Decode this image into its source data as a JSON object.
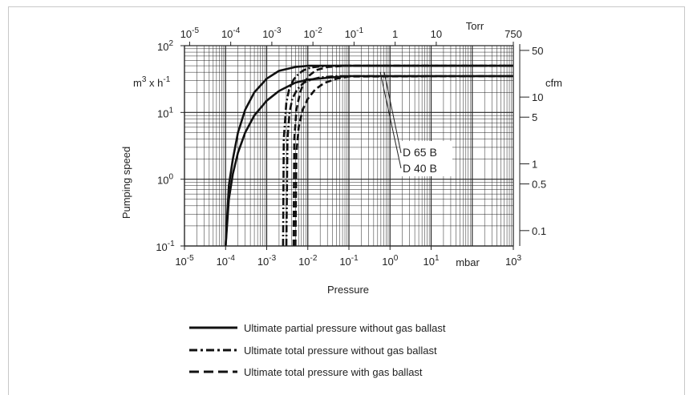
{
  "chart_data": {
    "type": "line",
    "x_scale": "log",
    "y_scale": "log",
    "xlim": [
      1e-05,
      1000
    ],
    "ylim": [
      0.1,
      100
    ],
    "xlabel": "Pressure",
    "ylabel": "Pumping speed",
    "bottom_axis": {
      "unit_label": "mbar",
      "ticks": [
        {
          "value": 1e-05,
          "base": "10",
          "exp": "-5"
        },
        {
          "value": 0.0001,
          "base": "10",
          "exp": "-4"
        },
        {
          "value": 0.001,
          "base": "10",
          "exp": "-3"
        },
        {
          "value": 0.01,
          "base": "10",
          "exp": "-2"
        },
        {
          "value": 0.1,
          "base": "10",
          "exp": "-1"
        },
        {
          "value": 1,
          "base": "10",
          "exp": "0"
        },
        {
          "value": 10,
          "base": "10",
          "exp": "1"
        },
        {
          "value": 1000,
          "base": "10",
          "exp": "3"
        }
      ]
    },
    "top_axis": {
      "unit_label": "Torr",
      "ticks": [
        {
          "torr": 1e-05,
          "base": "10",
          "exp": "-5"
        },
        {
          "torr": 0.0001,
          "base": "10",
          "exp": "-4"
        },
        {
          "torr": 0.001,
          "base": "10",
          "exp": "-3"
        },
        {
          "torr": 0.01,
          "base": "10",
          "exp": "-2"
        },
        {
          "torr": 0.1,
          "base": "10",
          "exp": "-1"
        },
        {
          "torr": 1,
          "base": "1",
          "exp": ""
        },
        {
          "torr": 10,
          "base": "10",
          "exp": ""
        },
        {
          "torr": 750,
          "base": "750",
          "exp": ""
        }
      ]
    },
    "left_axis": {
      "unit_base": "m",
      "unit_exp1": "3",
      "unit_mid": " x h",
      "unit_exp2": "-1",
      "ticks": [
        {
          "value": 100,
          "base": "10",
          "exp": "2"
        },
        {
          "value": 10,
          "base": "10",
          "exp": "1"
        },
        {
          "value": 1,
          "base": "10",
          "exp": "0"
        },
        {
          "value": 0.1,
          "base": "10",
          "exp": "-1"
        }
      ]
    },
    "right_axis": {
      "unit_label": "cfm",
      "ticks": [
        {
          "cfm": 50,
          "label": "50"
        },
        {
          "cfm": 10,
          "label": "10"
        },
        {
          "cfm": 5,
          "label": "5"
        },
        {
          "cfm": 1,
          "label": "1"
        },
        {
          "cfm": 0.5,
          "label": "0.5"
        },
        {
          "cfm": 0.1,
          "label": "0.1"
        }
      ]
    },
    "series": [
      {
        "style": "solid",
        "model": "D 65 B",
        "x": [
          0.0001,
          0.00012,
          0.00015,
          0.0002,
          0.0003,
          0.0005,
          0.001,
          0.002,
          0.005,
          0.01,
          0.1,
          1000
        ],
        "y": [
          0.1,
          0.8,
          2.0,
          5.0,
          11,
          20,
          32,
          42,
          48,
          50,
          50,
          50
        ]
      },
      {
        "style": "solid",
        "model": "D 40 B",
        "x": [
          0.0001,
          0.00012,
          0.00015,
          0.0002,
          0.0003,
          0.0005,
          0.001,
          0.002,
          0.005,
          0.01,
          0.05,
          0.1,
          1000
        ],
        "y": [
          0.1,
          0.5,
          1.2,
          2.5,
          5,
          9,
          15,
          21,
          28,
          31,
          34,
          35,
          35
        ]
      },
      {
        "style": "dashdot",
        "model": "D 65 B",
        "x": [
          0.0025,
          0.0026,
          0.003,
          0.0035,
          0.0045,
          0.006,
          0.008,
          0.012,
          0.02,
          0.05,
          1000
        ],
        "y": [
          0.1,
          4,
          14,
          22,
          31,
          38,
          43,
          47,
          49,
          50,
          50
        ]
      },
      {
        "style": "dashdot",
        "model": "D 40 B",
        "x": [
          0.003,
          0.0032,
          0.0036,
          0.0042,
          0.0055,
          0.008,
          0.012,
          0.02,
          0.05,
          1000
        ],
        "y": [
          0.1,
          4,
          10,
          16,
          22,
          28,
          31,
          33.5,
          35,
          35
        ]
      },
      {
        "style": "dashed",
        "model": "D 65 B",
        "x": [
          0.0045,
          0.0047,
          0.0053,
          0.0065,
          0.008,
          0.011,
          0.016,
          0.03,
          0.08,
          1000
        ],
        "y": [
          0.1,
          4,
          11,
          20,
          28,
          36,
          43,
          48,
          50,
          50
        ]
      },
      {
        "style": "dashed",
        "model": "D 40 B",
        "x": [
          0.005,
          0.0053,
          0.006,
          0.0075,
          0.01,
          0.015,
          0.025,
          0.05,
          0.1,
          1000
        ],
        "y": [
          0.1,
          2.5,
          6,
          11,
          16,
          22,
          27.5,
          32,
          34.5,
          35
        ]
      }
    ],
    "annotations": [
      "D 65 B",
      "D 40 B"
    ],
    "legend": {
      "placement": "bottom",
      "entries": [
        {
          "style": "solid",
          "label": "Ultimate partial pressure without gas ballast"
        },
        {
          "style": "dashdot",
          "label": "Ultimate total pressure without gas ballast"
        },
        {
          "style": "dashed",
          "label": "Ultimate total pressure with gas ballast"
        }
      ]
    },
    "grid": true
  }
}
